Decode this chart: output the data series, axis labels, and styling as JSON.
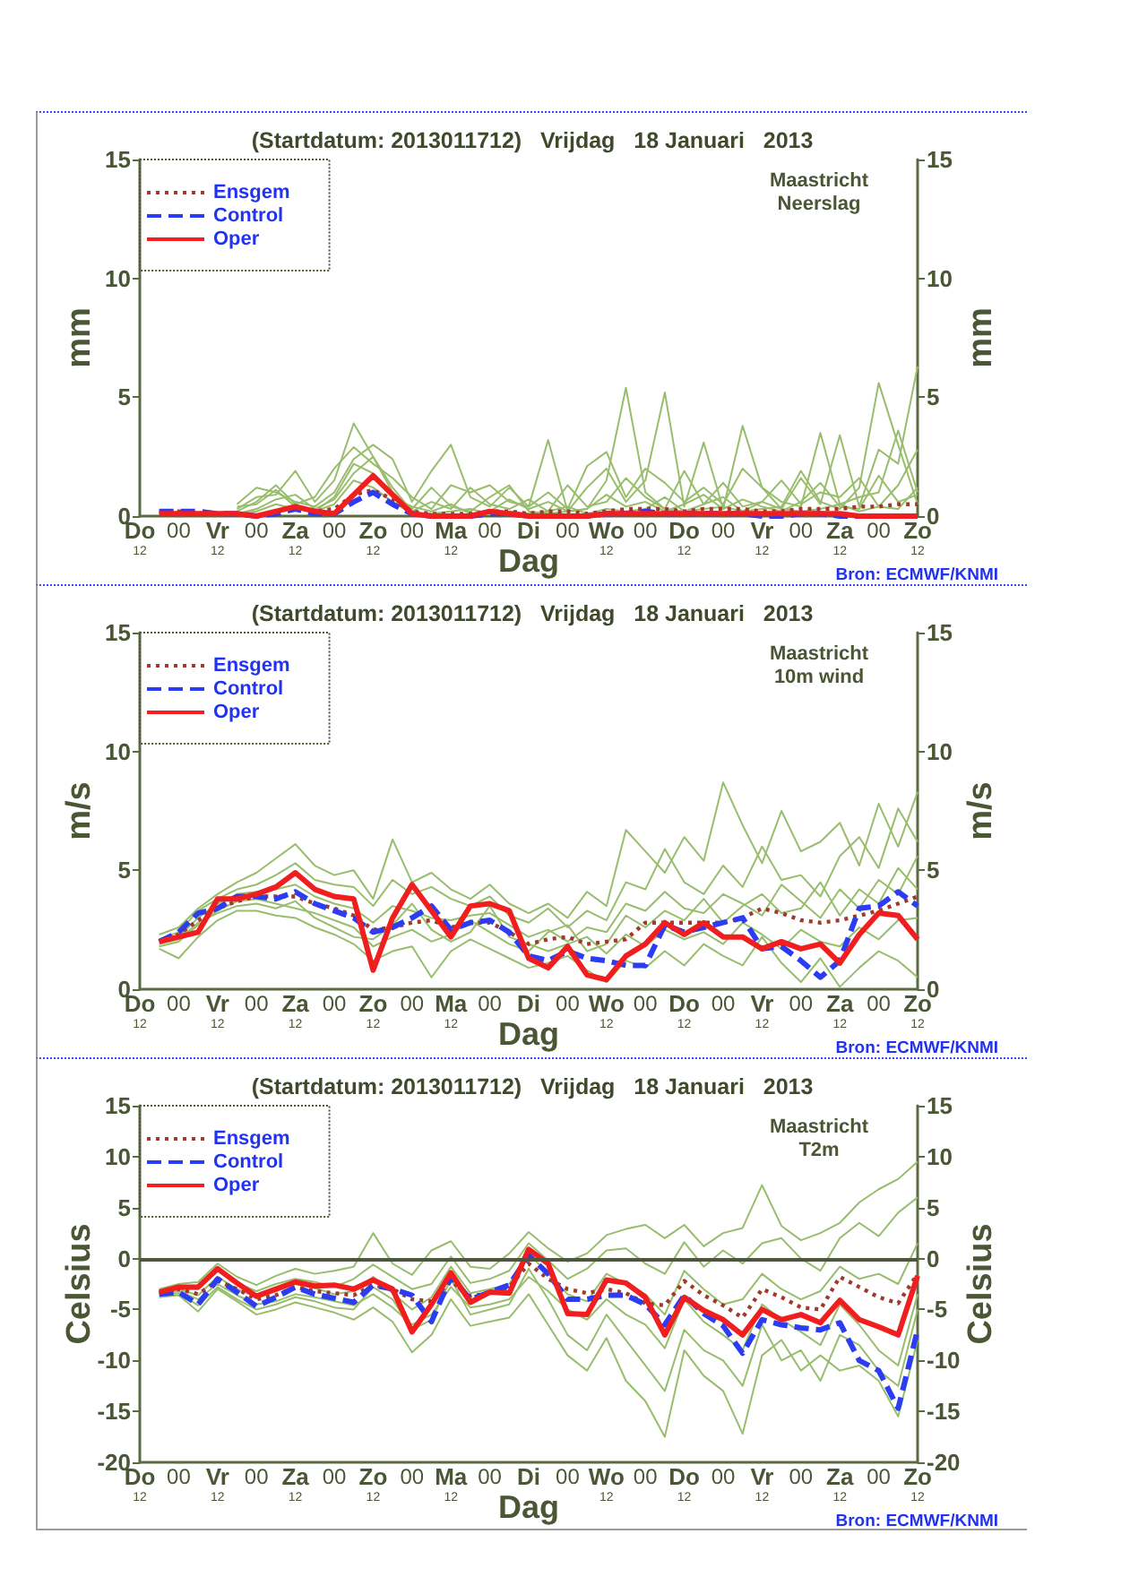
{
  "chart_data": [
    {
      "type": "line",
      "title": "(Startdatum: 2013011712)   Vrijdag   18 Januari   2013",
      "xlabel": "Dag",
      "ylabel": "mm",
      "y2label": "mm",
      "annotations": [
        "Maastricht",
        "Neerslag",
        "Bron: ECMWF/KNMI"
      ],
      "legend": "top left",
      "marker": "none",
      "x": [
        "2013-01-17T18:00",
        "2013-01-18T00:00",
        "2013-01-18T06:00",
        "2013-01-18T12:00",
        "2013-01-18T18:00",
        "2013-01-19T00:00",
        "2013-01-19T06:00",
        "2013-01-19T12:00",
        "2013-01-19T18:00",
        "2013-01-20T00:00",
        "2013-01-20T06:00",
        "2013-01-20T12:00",
        "2013-01-20T18:00",
        "2013-01-21T00:00",
        "2013-01-21T06:00",
        "2013-01-21T12:00",
        "2013-01-21T18:00",
        "2013-01-22T00:00",
        "2013-01-22T06:00",
        "2013-01-22T12:00",
        "2013-01-22T18:00",
        "2013-01-23T00:00",
        "2013-01-23T06:00",
        "2013-01-23T12:00",
        "2013-01-23T18:00",
        "2013-01-24T00:00",
        "2013-01-24T06:00",
        "2013-01-24T12:00",
        "2013-01-24T18:00",
        "2013-01-25T00:00",
        "2013-01-25T06:00",
        "2013-01-25T12:00",
        "2013-01-25T18:00",
        "2013-01-26T00:00",
        "2013-01-26T06:00",
        "2013-01-26T12:00",
        "2013-01-26T18:00",
        "2013-01-27T00:00",
        "2013-01-27T06:00",
        "2013-01-27T12:00"
      ],
      "xlim": [
        "2013-01-17T12:00",
        "2013-01-27T12:00"
      ],
      "xticks": [
        {
          "value": "2013-01-17T12:00",
          "label": "Do\n12"
        },
        {
          "value": "2013-01-18T00:00",
          "label": "00"
        },
        {
          "value": "2013-01-18T12:00",
          "label": "Vr\n12"
        },
        {
          "value": "2013-01-19T00:00",
          "label": "00"
        },
        {
          "value": "2013-01-19T12:00",
          "label": "Za\n12"
        },
        {
          "value": "2013-01-20T00:00",
          "label": "00"
        },
        {
          "value": "2013-01-20T12:00",
          "label": "Zo\n12"
        },
        {
          "value": "2013-01-21T00:00",
          "label": "00"
        },
        {
          "value": "2013-01-21T12:00",
          "label": "Ma\n12"
        },
        {
          "value": "2013-01-22T00:00",
          "label": "00"
        },
        {
          "value": "2013-01-22T12:00",
          "label": "Di"
        },
        {
          "value": "2013-01-23T00:00",
          "label": "00"
        },
        {
          "value": "2013-01-23T12:00",
          "label": "Wo\n12"
        },
        {
          "value": "2013-01-24T00:00",
          "label": "00"
        },
        {
          "value": "2013-01-24T12:00",
          "label": "Do\n12"
        },
        {
          "value": "2013-01-25T00:00",
          "label": "00"
        },
        {
          "value": "2013-01-25T12:00",
          "label": "Vr\n12"
        },
        {
          "value": "2013-01-26T00:00",
          "label": "00"
        },
        {
          "value": "2013-01-26T12:00",
          "label": "Za\n12"
        },
        {
          "value": "2013-01-27T00:00",
          "label": "00"
        },
        {
          "value": "2013-01-27T12:00",
          "label": "Zo\n12"
        }
      ],
      "ylim": [
        0,
        15
      ],
      "yticks": [
        0,
        5,
        10,
        15
      ],
      "y2lim": [
        0,
        15
      ],
      "y2ticks": [
        0,
        5,
        10,
        15
      ],
      "series": [
        {
          "color": "#98bd6c",
          "values": [
            null,
            null,
            null,
            null,
            0.3,
            0.8,
            0.9,
            1.9,
            0.6,
            1.5,
            3.9,
            2.5,
            1.0,
            0.3,
            1.2,
            0.4,
            0.2,
            0.8,
            1.3,
            0.2,
            0.1,
            0.2,
            0.3,
            1.5,
            5.4,
            1.0,
            0.3,
            0.2,
            0.5,
            0.8,
            0.2,
            0.3,
            0.4,
            1.9,
            0.6,
            0.3,
            1.2,
            5.6,
            3.0,
            0.5
          ]
        },
        {
          "color": "#98bd6c",
          "values": [
            null,
            null,
            null,
            null,
            0.5,
            1.2,
            1.0,
            0.6,
            0.4,
            1.0,
            2.4,
            3.0,
            2.4,
            0.6,
            1.9,
            3.0,
            0.8,
            0.4,
            1.2,
            0.4,
            3.2,
            0.2,
            1.2,
            2.0,
            0.6,
            1.5,
            5.2,
            0.4,
            3.1,
            0.3,
            3.8,
            1.2,
            0.6,
            0.4,
            3.5,
            0.5,
            0.8,
            1.0,
            3.6,
            1.0
          ]
        },
        {
          "color": "#98bd6c",
          "values": [
            null,
            null,
            null,
            null,
            0.2,
            0.6,
            1.3,
            0.5,
            0.8,
            2.0,
            2.9,
            2.2,
            1.6,
            0.8,
            0.3,
            1.3,
            1.0,
            1.3,
            0.6,
            0.4,
            1.0,
            0.3,
            2.1,
            2.7,
            0.8,
            2.0,
            1.4,
            0.6,
            1.2,
            0.5,
            2.0,
            1.2,
            0.3,
            1.6,
            0.5,
            3.4,
            0.4,
            2.8,
            2.2,
            6.3
          ]
        },
        {
          "color": "#98bd6c",
          "values": [
            null,
            null,
            null,
            null,
            0.1,
            0.3,
            0.7,
            0.9,
            0.3,
            0.7,
            1.8,
            2.5,
            1.2,
            0.2,
            0.6,
            0.3,
            1.2,
            0.5,
            0.3,
            0.7,
            0.2,
            1.3,
            0.4,
            0.6,
            1.6,
            0.8,
            0.3,
            1.9,
            0.5,
            1.4,
            0.4,
            0.6,
            1.5,
            0.5,
            1.0,
            0.8,
            1.6,
            0.4,
            1.3,
            2.8
          ]
        },
        {
          "color": "#98bd6c",
          "values": [
            null,
            null,
            null,
            null,
            0.4,
            0.5,
            1.1,
            0.4,
            0.2,
            0.8,
            2.2,
            1.8,
            0.8,
            0.4,
            0.2,
            0.5,
            0.1,
            0.2,
            0.7,
            0.3,
            0.6,
            0.2,
            0.3,
            0.9,
            0.4,
            0.6,
            0.2,
            0.5,
            0.9,
            0.3,
            0.7,
            0.4,
            0.2,
            0.6,
            1.4,
            0.4,
            0.3,
            1.7,
            0.6,
            0.9
          ]
        },
        {
          "color": "#98bd6c",
          "values": [
            null,
            null,
            null,
            null,
            0.1,
            0.2,
            0.5,
            0.3,
            0.2,
            0.5,
            1.5,
            1.2,
            0.6,
            0.1,
            0.1,
            0.2,
            0.3,
            0.1,
            0.2,
            0.1,
            0.2,
            0.4,
            0.1,
            0.3,
            0.2,
            0.3,
            0.8,
            0.2,
            0.3,
            0.4,
            0.2,
            0.6,
            0.3,
            0.2,
            0.3,
            0.5,
            0.2,
            0.4,
            0.3,
            1.2
          ]
        },
        {
          "name": "Ensgem",
          "color": "#a03a2a",
          "line_style": "dotted",
          "values": [
            0.2,
            0.2,
            0.1,
            0.1,
            0.1,
            0,
            0.2,
            0.4,
            0.2,
            0.3,
            0.9,
            1.1,
            0.7,
            0.2,
            0.1,
            0.1,
            0.1,
            0.2,
            0.2,
            0.1,
            0.2,
            0.2,
            0.1,
            0.2,
            0.3,
            0.3,
            0.3,
            0.2,
            0.3,
            0.3,
            0.3,
            0.2,
            0.2,
            0.3,
            0.3,
            0.3,
            0.4,
            0.4,
            0.5,
            0.5
          ]
        },
        {
          "name": "Control",
          "color": "#2b3cf2",
          "line_style": "dashed",
          "values": [
            0.2,
            0.2,
            0.2,
            0.1,
            0.1,
            0,
            0.1,
            0.3,
            0.1,
            0.1,
            0.6,
            1.0,
            0.5,
            0.1,
            0,
            0,
            0,
            0.1,
            0.1,
            0,
            0,
            0,
            0,
            0.1,
            0.1,
            0.2,
            0.1,
            0.1,
            0.1,
            0.1,
            0.1,
            0,
            0,
            0.1,
            0.1,
            0,
            0,
            0,
            null,
            null
          ]
        },
        {
          "name": "Oper",
          "color": "#f01e1e",
          "line_style": "solid",
          "values": [
            0.1,
            0.1,
            0.1,
            0.1,
            0.1,
            0,
            0.2,
            0.4,
            0.2,
            0.1,
            0.9,
            1.7,
            0.9,
            0.1,
            0,
            0,
            0,
            0.2,
            0.1,
            0,
            0,
            0,
            0,
            0.1,
            0.1,
            0.1,
            0.1,
            0.1,
            0.1,
            0.1,
            0.1,
            0.1,
            0.1,
            0.1,
            0.1,
            0.1,
            0,
            0,
            0,
            0
          ]
        }
      ]
    },
    {
      "type": "line",
      "title": "(Startdatum: 2013011712)   Vrijdag   18 Januari   2013",
      "xlabel": "Dag",
      "ylabel": "m/s",
      "y2label": "m/s",
      "annotations": [
        "Maastricht",
        "10m wind",
        "Bron: ECMWF/KNMI"
      ],
      "legend": "top left",
      "marker": "none",
      "x": [
        "2013-01-17T18:00",
        "2013-01-18T00:00",
        "2013-01-18T06:00",
        "2013-01-18T12:00",
        "2013-01-18T18:00",
        "2013-01-19T00:00",
        "2013-01-19T06:00",
        "2013-01-19T12:00",
        "2013-01-19T18:00",
        "2013-01-20T00:00",
        "2013-01-20T06:00",
        "2013-01-20T12:00",
        "2013-01-20T18:00",
        "2013-01-21T00:00",
        "2013-01-21T06:00",
        "2013-01-21T12:00",
        "2013-01-21T18:00",
        "2013-01-22T00:00",
        "2013-01-22T06:00",
        "2013-01-22T12:00",
        "2013-01-22T18:00",
        "2013-01-23T00:00",
        "2013-01-23T06:00",
        "2013-01-23T12:00",
        "2013-01-23T18:00",
        "2013-01-24T00:00",
        "2013-01-24T06:00",
        "2013-01-24T12:00",
        "2013-01-24T18:00",
        "2013-01-25T00:00",
        "2013-01-25T06:00",
        "2013-01-25T12:00",
        "2013-01-25T18:00",
        "2013-01-26T00:00",
        "2013-01-26T06:00",
        "2013-01-26T12:00",
        "2013-01-26T18:00",
        "2013-01-27T00:00",
        "2013-01-27T06:00",
        "2013-01-27T12:00"
      ],
      "xlim": [
        "2013-01-17T12:00",
        "2013-01-27T12:00"
      ],
      "xticks": [
        {
          "value": "2013-01-17T12:00",
          "label": "Do\n12"
        },
        {
          "value": "2013-01-18T00:00",
          "label": "00"
        },
        {
          "value": "2013-01-18T12:00",
          "label": "Vr\n12"
        },
        {
          "value": "2013-01-19T00:00",
          "label": "00"
        },
        {
          "value": "2013-01-19T12:00",
          "label": "Za\n12"
        },
        {
          "value": "2013-01-20T00:00",
          "label": "00"
        },
        {
          "value": "2013-01-20T12:00",
          "label": "Zo\n12"
        },
        {
          "value": "2013-01-21T00:00",
          "label": "00"
        },
        {
          "value": "2013-01-21T12:00",
          "label": "Ma\n12"
        },
        {
          "value": "2013-01-22T00:00",
          "label": "00"
        },
        {
          "value": "2013-01-22T12:00",
          "label": "Di"
        },
        {
          "value": "2013-01-23T00:00",
          "label": "00"
        },
        {
          "value": "2013-01-23T12:00",
          "label": "Wo\n12"
        },
        {
          "value": "2013-01-24T00:00",
          "label": "00"
        },
        {
          "value": "2013-01-24T12:00",
          "label": "Do\n12"
        },
        {
          "value": "2013-01-25T00:00",
          "label": "00"
        },
        {
          "value": "2013-01-25T12:00",
          "label": "Vr\n12"
        },
        {
          "value": "2013-01-26T00:00",
          "label": "00"
        },
        {
          "value": "2013-01-26T12:00",
          "label": "Za\n12"
        },
        {
          "value": "2013-01-27T00:00",
          "label": "00"
        },
        {
          "value": "2013-01-27T12:00",
          "label": "Zo\n12"
        }
      ],
      "ylim": [
        0,
        15
      ],
      "yticks": [
        0,
        5,
        10,
        15
      ],
      "y2lim": [
        0,
        15
      ],
      "y2ticks": [
        0,
        5,
        10,
        15
      ],
      "series": [
        {
          "color": "#98bd6c",
          "values": [
            2.3,
            2.6,
            3.4,
            4.0,
            4.5,
            4.9,
            5.5,
            6.1,
            5.2,
            4.8,
            5.0,
            3.8,
            6.3,
            4.5,
            4.9,
            4.2,
            3.8,
            4.4,
            3.6,
            3.2,
            3.6,
            3.0,
            4.1,
            3.5,
            6.7,
            5.8,
            4.9,
            6.4,
            5.4,
            8.7,
            6.9,
            5.3,
            7.5,
            5.8,
            6.2,
            7.0,
            5.2,
            7.8,
            6.0,
            8.3
          ]
        },
        {
          "color": "#98bd6c",
          "values": [
            2.1,
            2.4,
            3.3,
            3.8,
            4.2,
            4.4,
            4.8,
            5.3,
            4.6,
            4.4,
            4.3,
            3.5,
            4.6,
            4.0,
            4.3,
            3.8,
            3.5,
            3.9,
            3.1,
            2.8,
            3.4,
            2.6,
            3.3,
            2.9,
            4.5,
            4.2,
            5.9,
            4.5,
            4.0,
            5.2,
            4.3,
            6.0,
            4.6,
            4.8,
            3.9,
            5.6,
            6.4,
            5.1,
            7.6,
            6.2
          ]
        },
        {
          "color": "#98bd6c",
          "values": [
            1.8,
            2.0,
            2.7,
            3.3,
            3.7,
            3.8,
            3.6,
            3.4,
            3.2,
            2.9,
            2.6,
            1.8,
            2.2,
            2.5,
            2.0,
            2.3,
            2.9,
            2.4,
            1.9,
            1.6,
            2.4,
            2.7,
            1.6,
            1.9,
            3.1,
            2.6,
            3.3,
            2.9,
            3.8,
            2.8,
            3.5,
            4.0,
            3.2,
            3.4,
            4.5,
            3.1,
            4.2,
            3.6,
            5.1,
            4.2
          ]
        },
        {
          "color": "#98bd6c",
          "values": [
            1.7,
            1.3,
            2.2,
            2.9,
            3.3,
            3.3,
            3.1,
            3.0,
            2.6,
            2.3,
            1.9,
            1.2,
            1.6,
            1.8,
            0.5,
            1.6,
            2.1,
            1.7,
            1.3,
            0.9,
            1.1,
            1.4,
            0.8,
            0.3,
            1.2,
            0.9,
            1.6,
            1.0,
            1.9,
            1.4,
            1.0,
            2.2,
            1.1,
            0.3,
            1.3,
            0.1,
            0.9,
            1.6,
            1.2,
            0.5
          ]
        },
        {
          "color": "#98bd6c",
          "values": [
            2.0,
            2.2,
            3.0,
            3.6,
            4.0,
            4.1,
            4.2,
            4.4,
            3.9,
            3.6,
            3.4,
            2.8,
            3.5,
            3.3,
            3.0,
            2.9,
            3.1,
            3.2,
            2.7,
            2.2,
            2.5,
            2.0,
            2.6,
            2.4,
            3.6,
            3.3,
            4.1,
            3.4,
            3.2,
            4.0,
            3.6,
            3.1,
            4.4,
            3.7,
            3.0,
            4.2,
            3.4,
            4.6,
            4.0,
            5.6
          ]
        },
        {
          "color": "#98bd6c",
          "values": [
            1.9,
            2.1,
            2.8,
            3.2,
            3.5,
            3.6,
            3.4,
            3.7,
            3.0,
            2.6,
            2.2,
            2.1,
            2.7,
            3.6,
            2.5,
            2.0,
            2.4,
            3.5,
            2.2,
            1.9,
            1.6,
            1.9,
            2.2,
            1.5,
            2.3,
            1.8,
            2.5,
            2.1,
            2.4,
            1.9,
            2.8,
            2.3,
            1.7,
            2.5,
            2.0,
            1.8,
            2.6,
            2.1,
            2.9,
            3.0
          ]
        },
        {
          "name": "Ensgem",
          "color": "#a03a2a",
          "line_style": "dotted",
          "values": [
            2.0,
            2.3,
            2.9,
            3.4,
            3.7,
            3.9,
            3.9,
            3.9,
            3.6,
            3.4,
            3.1,
            2.5,
            2.6,
            2.8,
            2.9,
            2.6,
            2.8,
            2.8,
            2.4,
            1.9,
            2.1,
            2.2,
            1.9,
            2.0,
            2.1,
            2.8,
            2.8,
            2.8,
            2.8,
            2.8,
            3.0,
            3.4,
            3.2,
            2.9,
            2.8,
            2.9,
            3.1,
            3.3,
            3.6,
            3.9
          ]
        },
        {
          "name": "Control",
          "color": "#2b3cf2",
          "line_style": "dashed",
          "values": [
            2.0,
            2.4,
            3.2,
            3.4,
            3.9,
            3.9,
            3.8,
            4.1,
            3.6,
            3.3,
            3.0,
            2.4,
            2.6,
            3.0,
            3.5,
            2.5,
            2.8,
            2.9,
            2.4,
            1.4,
            1.2,
            1.6,
            1.3,
            1.2,
            1.0,
            1.0,
            2.7,
            2.4,
            2.6,
            2.8,
            3.0,
            1.7,
            1.8,
            1.2,
            0.5,
            1.2,
            3.4,
            3.5,
            4.1,
            3.5
          ]
        },
        {
          "name": "Oper",
          "color": "#f01e1e",
          "line_style": "solid",
          "values": [
            2.0,
            2.2,
            2.4,
            3.8,
            3.8,
            4.0,
            4.3,
            4.9,
            4.2,
            3.9,
            3.8,
            0.8,
            3.0,
            4.4,
            3.3,
            2.2,
            3.5,
            3.6,
            3.3,
            1.3,
            0.9,
            1.8,
            0.6,
            0.4,
            1.4,
            1.9,
            2.8,
            2.3,
            2.8,
            2.2,
            2.2,
            1.7,
            2.0,
            1.7,
            1.9,
            1.1,
            2.3,
            3.2,
            3.1,
            2.1
          ]
        }
      ]
    },
    {
      "type": "line",
      "title": "(Startdatum: 2013011712)   Vrijdag   18 Januari   2013",
      "xlabel": "Dag",
      "ylabel": "Celsius",
      "y2label": "Celsius",
      "annotations": [
        "Maastricht",
        "T2m",
        "Bron: ECMWF/KNMI"
      ],
      "legend": "top left",
      "marker": "none",
      "x": [
        "2013-01-17T18:00",
        "2013-01-18T00:00",
        "2013-01-18T06:00",
        "2013-01-18T12:00",
        "2013-01-18T18:00",
        "2013-01-19T00:00",
        "2013-01-19T06:00",
        "2013-01-19T12:00",
        "2013-01-19T18:00",
        "2013-01-20T00:00",
        "2013-01-20T06:00",
        "2013-01-20T12:00",
        "2013-01-20T18:00",
        "2013-01-21T00:00",
        "2013-01-21T06:00",
        "2013-01-21T12:00",
        "2013-01-21T18:00",
        "2013-01-22T00:00",
        "2013-01-22T06:00",
        "2013-01-22T12:00",
        "2013-01-22T18:00",
        "2013-01-23T00:00",
        "2013-01-23T06:00",
        "2013-01-23T12:00",
        "2013-01-23T18:00",
        "2013-01-24T00:00",
        "2013-01-24T06:00",
        "2013-01-24T12:00",
        "2013-01-24T18:00",
        "2013-01-25T00:00",
        "2013-01-25T06:00",
        "2013-01-25T12:00",
        "2013-01-25T18:00",
        "2013-01-26T00:00",
        "2013-01-26T06:00",
        "2013-01-26T12:00",
        "2013-01-26T18:00",
        "2013-01-27T00:00",
        "2013-01-27T06:00",
        "2013-01-27T12:00"
      ],
      "xlim": [
        "2013-01-17T12:00",
        "2013-01-27T12:00"
      ],
      "xticks": [
        {
          "value": "2013-01-17T12:00",
          "label": "Do\n12"
        },
        {
          "value": "2013-01-18T00:00",
          "label": "00"
        },
        {
          "value": "2013-01-18T12:00",
          "label": "Vr\n12"
        },
        {
          "value": "2013-01-19T00:00",
          "label": "00"
        },
        {
          "value": "2013-01-19T12:00",
          "label": "Za\n12"
        },
        {
          "value": "2013-01-20T00:00",
          "label": "00"
        },
        {
          "value": "2013-01-20T12:00",
          "label": "Zo\n12"
        },
        {
          "value": "2013-01-21T00:00",
          "label": "00"
        },
        {
          "value": "2013-01-21T12:00",
          "label": "Ma\n12"
        },
        {
          "value": "2013-01-22T00:00",
          "label": "00"
        },
        {
          "value": "2013-01-22T12:00",
          "label": "Di"
        },
        {
          "value": "2013-01-23T00:00",
          "label": "00"
        },
        {
          "value": "2013-01-23T12:00",
          "label": "Wo\n12"
        },
        {
          "value": "2013-01-24T00:00",
          "label": "00"
        },
        {
          "value": "2013-01-24T12:00",
          "label": "Do\n12"
        },
        {
          "value": "2013-01-25T00:00",
          "label": "00"
        },
        {
          "value": "2013-01-25T12:00",
          "label": "Vr\n12"
        },
        {
          "value": "2013-01-26T00:00",
          "label": "00"
        },
        {
          "value": "2013-01-26T12:00",
          "label": "Za\n12"
        },
        {
          "value": "2013-01-27T00:00",
          "label": "00"
        },
        {
          "value": "2013-01-27T12:00",
          "label": "Zo\n12"
        }
      ],
      "ylim": [
        -20,
        15
      ],
      "yticks": [
        -20,
        -15,
        -10,
        -5,
        0,
        5,
        10,
        15
      ],
      "y2lim": [
        -20,
        15
      ],
      "y2ticks": [
        -20,
        -15,
        -10,
        -5,
        0,
        5,
        10,
        15
      ],
      "ref_lines": [
        {
          "axis": "y",
          "value": 0,
          "color": "#4f5640"
        }
      ],
      "series": [
        {
          "color": "#98bd6c",
          "values": [
            -3.0,
            -2.5,
            -2.3,
            -0.5,
            -1.8,
            -2.6,
            -1.7,
            -1.0,
            -1.5,
            -1.2,
            -0.8,
            2.5,
            -0.5,
            -1.6,
            0.8,
            1.7,
            -0.8,
            -1.0,
            0.5,
            2.6,
            1.0,
            -0.3,
            0.5,
            2.3,
            2.9,
            3.3,
            2.0,
            3.3,
            1.2,
            2.5,
            3.0,
            7.2,
            3.2,
            1.8,
            2.5,
            3.5,
            5.5,
            6.8,
            7.8,
            9.5
          ]
        },
        {
          "color": "#98bd6c",
          "values": [
            -3.2,
            -2.8,
            -3.0,
            -1.2,
            -2.4,
            -3.2,
            -2.5,
            -2.0,
            -2.3,
            -2.8,
            -2.0,
            -0.6,
            -1.8,
            -3.0,
            -2.5,
            0.2,
            -2.4,
            -2.0,
            -1.2,
            1.5,
            -0.2,
            -2.0,
            -1.0,
            0.8,
            1.0,
            -0.5,
            -1.5,
            1.6,
            -0.8,
            0.8,
            -0.5,
            1.5,
            2.0,
            0,
            -1.2,
            2.0,
            3.5,
            2.2,
            4.5,
            6.0
          ]
        },
        {
          "color": "#98bd6c",
          "values": [
            -3.5,
            -3.2,
            -4.0,
            -2.5,
            -3.6,
            -4.5,
            -4.2,
            -3.5,
            -3.8,
            -4.2,
            -4.6,
            -3.5,
            -4.8,
            -6.5,
            -5.5,
            -2.8,
            -4.8,
            -4.5,
            -4.0,
            -1.8,
            -3.2,
            -5.0,
            -6.0,
            -4.0,
            -5.5,
            -6.5,
            -8.8,
            -4.0,
            -6.2,
            -7.5,
            -9.0,
            -4.5,
            -6.0,
            -7.2,
            -8.5,
            -4.5,
            -6.5,
            -9.0,
            -10.5,
            -3.5
          ]
        },
        {
          "color": "#98bd6c",
          "values": [
            -3.8,
            -3.6,
            -5.2,
            -3.0,
            -4.2,
            -5.5,
            -5.0,
            -4.3,
            -4.8,
            -5.3,
            -6.0,
            -4.8,
            -6.2,
            -9.2,
            -7.5,
            -4.0,
            -6.6,
            -6.2,
            -5.8,
            -3.5,
            -6.5,
            -9.5,
            -11.0,
            -7.8,
            -12.0,
            -14.0,
            -17.5,
            -9.0,
            -11.5,
            -13.0,
            -17.2,
            -9.5,
            -8.0,
            -11.0,
            -9.5,
            -11.0,
            -10.5,
            -12.0,
            -15.5,
            -8.0
          ]
        },
        {
          "color": "#98bd6c",
          "values": [
            -3.4,
            -3.0,
            -3.6,
            -1.8,
            -3.0,
            -3.8,
            -3.2,
            -2.5,
            -2.9,
            -3.5,
            -3.2,
            -1.8,
            -3.4,
            -5.0,
            -3.8,
            -0.8,
            -3.4,
            -3.0,
            -2.5,
            0.5,
            -1.5,
            -3.5,
            -4.2,
            -1.5,
            -2.5,
            -3.5,
            -5.5,
            -1.2,
            -3.0,
            -4.5,
            -4.0,
            -1.5,
            -3.0,
            -4.0,
            -3.2,
            -0.8,
            -2.0,
            -1.5,
            -2.5,
            1.5
          ]
        },
        {
          "color": "#98bd6c",
          "values": [
            -3.6,
            -3.4,
            -4.6,
            -2.8,
            -4.0,
            -5.0,
            -4.5,
            -3.8,
            -4.2,
            -4.8,
            -5.0,
            -2.8,
            -4.0,
            -7.0,
            -6.0,
            -2.0,
            -5.5,
            -5.0,
            -4.5,
            -1.0,
            -4.0,
            -7.5,
            -9.0,
            -5.5,
            -8.0,
            -10.5,
            -13.0,
            -7.0,
            -9.0,
            -10.0,
            -12.5,
            -6.5,
            -10.0,
            -9.0,
            -12.0,
            -7.5,
            -8.5,
            -11.0,
            -12.5,
            -5.0
          ]
        },
        {
          "name": "Ensgem",
          "color": "#a03a2a",
          "line_style": "dotted",
          "values": [
            -3.4,
            -3.0,
            -3.5,
            -2.2,
            -3.0,
            -4.0,
            -3.6,
            -2.8,
            -3.2,
            -3.4,
            -3.6,
            -2.6,
            -3.0,
            -4.0,
            -4.2,
            -2.2,
            -3.7,
            -3.4,
            -2.8,
            -0.5,
            -2.0,
            -3.0,
            -3.4,
            -3.0,
            -3.4,
            -4.4,
            -4.6,
            -2.2,
            -3.6,
            -4.6,
            -5.8,
            -3.0,
            -3.8,
            -4.8,
            -5.0,
            -1.8,
            -2.8,
            -3.8,
            -4.4,
            -1.5
          ]
        },
        {
          "name": "Control",
          "color": "#2b3cf2",
          "line_style": "dashed",
          "values": [
            -3.5,
            -3.3,
            -4.5,
            -2.0,
            -3.3,
            -4.7,
            -3.8,
            -2.8,
            -3.5,
            -3.9,
            -4.3,
            -2.6,
            -3.0,
            -3.6,
            -6.2,
            -1.8,
            -4.0,
            -3.3,
            -2.6,
            0.3,
            -1.5,
            -4.0,
            -4.0,
            -3.6,
            -3.6,
            -4.5,
            -6.5,
            -3.6,
            -5.4,
            -6.6,
            -9.3,
            -6.0,
            -6.5,
            -6.8,
            -7.0,
            -6.3,
            -10.0,
            -11.0,
            -14.7,
            -7.0
          ]
        },
        {
          "name": "Oper",
          "color": "#f01e1e",
          "line_style": "solid",
          "values": [
            -3.3,
            -2.8,
            -2.8,
            -1.0,
            -2.4,
            -3.7,
            -3.0,
            -2.3,
            -2.7,
            -2.6,
            -3.0,
            -2.1,
            -3.0,
            -7.2,
            -4.5,
            -1.4,
            -4.3,
            -3.3,
            -3.4,
            0.9,
            -0.5,
            -5.4,
            -5.5,
            -2.1,
            -2.4,
            -3.8,
            -7.5,
            -3.8,
            -5.1,
            -6.0,
            -7.5,
            -5.0,
            -6.0,
            -5.5,
            -6.3,
            -4.1,
            -6.0,
            -6.7,
            -7.5,
            -1.7
          ]
        }
      ]
    }
  ]
}
